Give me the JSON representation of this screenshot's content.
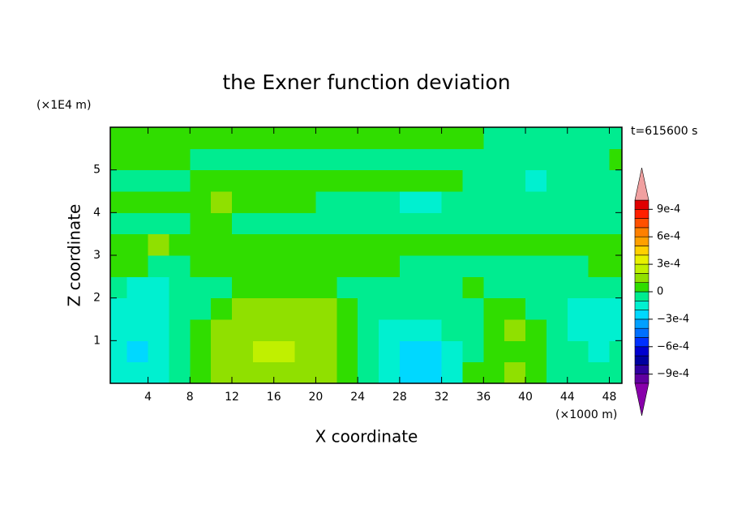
{
  "chart_data": {
    "type": "contour",
    "title": "the Exner function deviation",
    "xlabel": "X coordinate",
    "ylabel": "Z coordinate",
    "xunit": "(×1000 m)",
    "yunit": "(×1E4 m)",
    "annotation": "t=615600 s",
    "xlim": [
      0.4,
      49.2
    ],
    "ylim": [
      0,
      6
    ],
    "xticks": [
      4,
      8,
      12,
      16,
      20,
      24,
      28,
      32,
      36,
      40,
      44,
      48
    ],
    "yticks": [
      1,
      2,
      3,
      4,
      5
    ],
    "x": [
      1,
      3,
      5,
      7,
      9,
      11,
      13,
      15,
      17,
      19,
      21,
      23,
      25,
      27,
      29,
      31,
      33,
      35,
      37,
      39,
      41,
      43,
      45,
      47,
      49
    ],
    "y": [
      0.25,
      0.75,
      1.25,
      1.75,
      2.25,
      2.75,
      3.25,
      3.75,
      4.25,
      4.75,
      5.25,
      5.75
    ],
    "z": [
      [
        -0.00015,
        -0.00015,
        -0.00015,
        -5e-05,
        5e-05,
        0.00015,
        0.00015,
        0.00015,
        0.00015,
        0.00015,
        0.00015,
        5e-05,
        -5e-05,
        -0.00015,
        -0.00025,
        -0.00025,
        -0.00015,
        5e-05,
        5e-05,
        0.00015,
        5e-05,
        -5e-05,
        -5e-05,
        -5e-05,
        -5e-05
      ],
      [
        -0.00015,
        -0.00025,
        -0.00015,
        -5e-05,
        5e-05,
        0.00015,
        0.00015,
        0.00025,
        0.00025,
        0.00015,
        0.00015,
        5e-05,
        -5e-05,
        -0.00015,
        -0.00025,
        -0.00025,
        -0.00015,
        -5e-05,
        5e-05,
        5e-05,
        5e-05,
        -5e-05,
        -5e-05,
        -0.00015,
        -5e-05
      ],
      [
        -0.00015,
        -0.00015,
        -0.00015,
        -5e-05,
        5e-05,
        0.00015,
        0.00015,
        0.00015,
        0.00015,
        0.00015,
        0.00015,
        5e-05,
        -5e-05,
        -0.00015,
        -0.00015,
        -0.00015,
        -5e-05,
        -5e-05,
        5e-05,
        0.00015,
        5e-05,
        -5e-05,
        -0.00015,
        -0.00015,
        -0.00015
      ],
      [
        -0.00015,
        -0.00015,
        -0.00015,
        -5e-05,
        -5e-05,
        5e-05,
        0.00015,
        0.00015,
        0.00015,
        0.00015,
        0.00015,
        5e-05,
        -5e-05,
        -5e-05,
        -5e-05,
        -5e-05,
        -5e-05,
        -5e-05,
        5e-05,
        5e-05,
        -5e-05,
        -5e-05,
        -0.00015,
        -0.00015,
        -0.00015
      ],
      [
        -5e-05,
        -0.00015,
        -0.00015,
        -5e-05,
        -5e-05,
        -5e-05,
        5e-05,
        5e-05,
        5e-05,
        5e-05,
        5e-05,
        -5e-05,
        -5e-05,
        -5e-05,
        -5e-05,
        -5e-05,
        -5e-05,
        5e-05,
        -5e-05,
        -5e-05,
        -5e-05,
        -5e-05,
        -5e-05,
        -5e-05,
        -5e-05
      ],
      [
        5e-05,
        5e-05,
        -5e-05,
        -5e-05,
        5e-05,
        5e-05,
        5e-05,
        5e-05,
        5e-05,
        5e-05,
        5e-05,
        5e-05,
        5e-05,
        5e-05,
        -5e-05,
        -5e-05,
        -5e-05,
        -5e-05,
        -5e-05,
        -5e-05,
        -5e-05,
        -5e-05,
        -5e-05,
        5e-05,
        5e-05
      ],
      [
        5e-05,
        5e-05,
        0.00015,
        5e-05,
        5e-05,
        5e-05,
        5e-05,
        5e-05,
        5e-05,
        5e-05,
        5e-05,
        5e-05,
        5e-05,
        5e-05,
        5e-05,
        5e-05,
        5e-05,
        5e-05,
        5e-05,
        5e-05,
        5e-05,
        5e-05,
        5e-05,
        5e-05,
        5e-05
      ],
      [
        -5e-05,
        -5e-05,
        -5e-05,
        -5e-05,
        5e-05,
        5e-05,
        -5e-05,
        -5e-05,
        -5e-05,
        -5e-05,
        -5e-05,
        -5e-05,
        -5e-05,
        -5e-05,
        -5e-05,
        -5e-05,
        -5e-05,
        -5e-05,
        -5e-05,
        -5e-05,
        -5e-05,
        -5e-05,
        -5e-05,
        -5e-05,
        -5e-05
      ],
      [
        5e-05,
        5e-05,
        5e-05,
        5e-05,
        5e-05,
        0.00015,
        5e-05,
        5e-05,
        5e-05,
        5e-05,
        -5e-05,
        -5e-05,
        -5e-05,
        -5e-05,
        -0.00015,
        -0.00015,
        -5e-05,
        -5e-05,
        -5e-05,
        -5e-05,
        -5e-05,
        -5e-05,
        -5e-05,
        -5e-05,
        -5e-05
      ],
      [
        -5e-05,
        -5e-05,
        -5e-05,
        -5e-05,
        5e-05,
        5e-05,
        5e-05,
        5e-05,
        5e-05,
        5e-05,
        5e-05,
        5e-05,
        5e-05,
        5e-05,
        5e-05,
        5e-05,
        5e-05,
        -5e-05,
        -5e-05,
        -5e-05,
        -0.00015,
        -5e-05,
        -5e-05,
        -5e-05,
        -5e-05
      ],
      [
        5e-05,
        5e-05,
        5e-05,
        5e-05,
        -5e-05,
        -5e-05,
        -5e-05,
        -5e-05,
        -5e-05,
        -5e-05,
        -5e-05,
        -5e-05,
        -5e-05,
        -5e-05,
        -5e-05,
        -5e-05,
        -5e-05,
        -5e-05,
        -5e-05,
        -5e-05,
        -5e-05,
        -5e-05,
        -5e-05,
        -5e-05,
        5e-05
      ],
      [
        5e-05,
        5e-05,
        5e-05,
        5e-05,
        5e-05,
        5e-05,
        5e-05,
        5e-05,
        5e-05,
        5e-05,
        5e-05,
        5e-05,
        5e-05,
        5e-05,
        5e-05,
        5e-05,
        5e-05,
        5e-05,
        -5e-05,
        -5e-05,
        -5e-05,
        -5e-05,
        -5e-05,
        -5e-05,
        -5e-05
      ]
    ],
    "levels": [
      -0.001,
      -0.0009,
      -0.0008,
      -0.0007,
      -0.0006,
      -0.0005,
      -0.0004,
      -0.0003,
      -0.0002,
      -0.0001,
      0,
      0.0001,
      0.0002,
      0.0003,
      0.0004,
      0.0005,
      0.0006,
      0.0007,
      0.0008,
      0.0009,
      0.001
    ],
    "colors": [
      "#6000a0",
      "#3000a0",
      "#0000a0",
      "#0000d0",
      "#0030ff",
      "#0070ff",
      "#00a0ff",
      "#00d8ff",
      "#00f0d0",
      "#00ec90",
      "#30dd00",
      "#90e000",
      "#c0f000",
      "#e8f000",
      "#ffd000",
      "#ffa000",
      "#ff8000",
      "#ff5000",
      "#ff2000",
      "#e00000"
    ],
    "over_color": "#f0a0a0",
    "under_color": "#8800aa",
    "cticks": [
      {
        "value": 0.0009,
        "label": "9e-4"
      },
      {
        "value": 0.0006,
        "label": "6e-4"
      },
      {
        "value": 0.0003,
        "label": "3e-4"
      },
      0,
      {
        "value": -0.0003,
        "label": "−3e-4"
      },
      {
        "value": -0.0006,
        "label": "−6e-4"
      },
      {
        "value": -0.0009,
        "label": "−9e-4"
      }
    ]
  }
}
